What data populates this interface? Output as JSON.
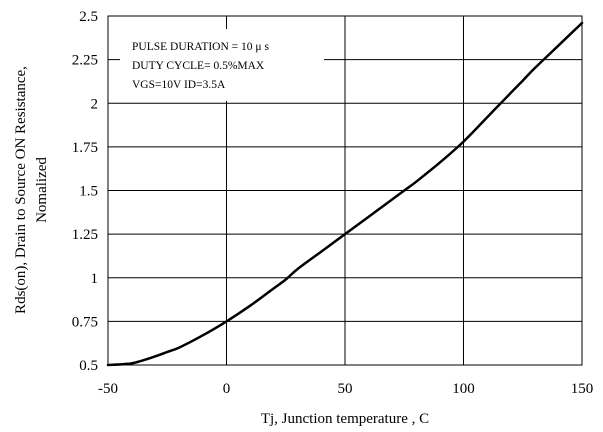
{
  "chart_data": {
    "type": "line",
    "title": "",
    "xlabel": "Tj, Junction temperature , C",
    "ylabel_line1": "Rds(on), Drain to Source ON  Resistance,",
    "ylabel_line2": "Nomalized",
    "xlim": [
      -50,
      150
    ],
    "ylim": [
      0.5,
      2.5
    ],
    "x_ticks": [
      -50,
      0,
      50,
      100,
      150
    ],
    "y_ticks": [
      0.5,
      0.75,
      1,
      1.25,
      1.5,
      1.75,
      2,
      2.25,
      2.5
    ],
    "x_tick_labels": [
      "-50",
      "0",
      "50",
      "100",
      "150"
    ],
    "y_tick_labels": [
      "0.5",
      "0.75",
      "1",
      "1.25",
      "1.5",
      "1.75",
      "2",
      "2.25",
      "2.5"
    ],
    "grid": true,
    "legend": {
      "placement": "top-left",
      "lines": [
        "PULSE    DURATION = 10 μ s",
        "DUTY    CYCLE= 0.5%MAX",
        "VGS=10V    ID=3.5A"
      ]
    },
    "series": [
      {
        "x": [
          -50,
          -40,
          -30,
          -25,
          -20,
          -10,
          0,
          10,
          20,
          25,
          30,
          40,
          50,
          60,
          70,
          75,
          80,
          90,
          100,
          110,
          120,
          125,
          130,
          140,
          150
        ],
        "values": [
          0.5,
          0.51,
          0.55,
          0.575,
          0.6,
          0.67,
          0.75,
          0.84,
          0.94,
          0.99,
          1.05,
          1.15,
          1.25,
          1.35,
          1.45,
          1.5,
          1.55,
          1.66,
          1.78,
          1.92,
          2.06,
          2.13,
          2.2,
          2.33,
          2.46
        ]
      }
    ]
  }
}
